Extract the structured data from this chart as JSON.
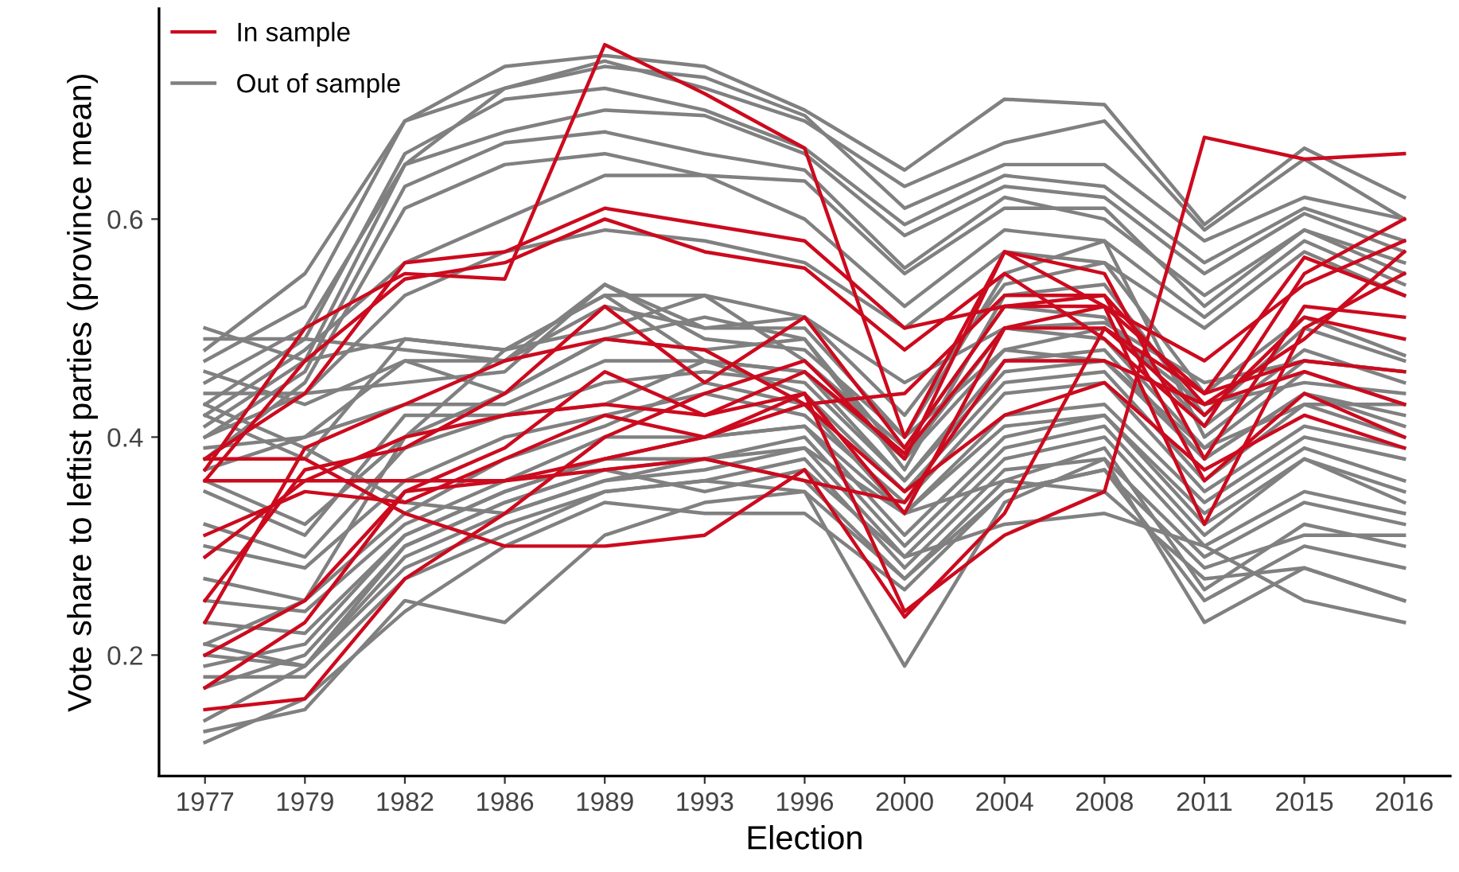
{
  "chart_data": {
    "type": "line",
    "xlabel": "Election",
    "ylabel": "Vote share to leftist parties (province mean)",
    "categories": [
      "1977",
      "1979",
      "1982",
      "1986",
      "1989",
      "1993",
      "1996",
      "2000",
      "2004",
      "2008",
      "2011",
      "2015",
      "2016"
    ],
    "ylim": [
      0.089,
      0.793
    ],
    "yticks": [
      {
        "value": 0.2,
        "label": "0.2"
      },
      {
        "value": 0.4,
        "label": "0.4"
      },
      {
        "value": 0.6,
        "label": "0.6"
      }
    ],
    "grid": false,
    "legend": "top left",
    "marker": "none",
    "line_style": "solid",
    "series": [
      {
        "color": "#808080",
        "values": [
          0.48,
          0.55,
          0.69,
          0.74,
          0.75,
          0.74,
          0.7,
          0.645,
          0.71,
          0.705,
          0.595,
          0.665,
          0.62
        ]
      },
      {
        "color": "#808080",
        "values": [
          0.47,
          0.52,
          0.69,
          0.72,
          0.745,
          0.72,
          0.69,
          0.63,
          0.67,
          0.69,
          0.59,
          0.655,
          0.6
        ]
      },
      {
        "color": "#808080",
        "values": [
          0.45,
          0.5,
          0.65,
          0.72,
          0.74,
          0.73,
          0.695,
          0.61,
          0.65,
          0.65,
          0.58,
          0.62,
          0.6
        ]
      },
      {
        "color": "#808080",
        "values": [
          0.43,
          0.49,
          0.66,
          0.71,
          0.72,
          0.7,
          0.665,
          0.595,
          0.64,
          0.63,
          0.56,
          0.61,
          0.58
        ]
      },
      {
        "color": "#808080",
        "values": [
          0.41,
          0.47,
          0.65,
          0.68,
          0.7,
          0.695,
          0.66,
          0.585,
          0.63,
          0.62,
          0.55,
          0.605,
          0.57
        ]
      },
      {
        "color": "#808080",
        "values": [
          0.4,
          0.46,
          0.63,
          0.67,
          0.68,
          0.66,
          0.645,
          0.555,
          0.62,
          0.6,
          0.53,
          0.59,
          0.56
        ]
      },
      {
        "color": "#808080",
        "values": [
          0.38,
          0.45,
          0.61,
          0.65,
          0.66,
          0.64,
          0.635,
          0.55,
          0.61,
          0.61,
          0.52,
          0.59,
          0.55
        ]
      },
      {
        "color": "#808080",
        "values": [
          0.42,
          0.48,
          0.56,
          0.6,
          0.64,
          0.64,
          0.6,
          0.52,
          0.59,
          0.58,
          0.51,
          0.58,
          0.54
        ]
      },
      {
        "color": "#808080",
        "values": [
          0.4,
          0.44,
          0.53,
          0.57,
          0.59,
          0.58,
          0.56,
          0.5,
          0.57,
          0.56,
          0.5,
          0.57,
          0.53
        ]
      },
      {
        "color": "#808080",
        "values": [
          0.5,
          0.47,
          0.49,
          0.48,
          0.5,
          0.53,
          0.51,
          0.45,
          0.5,
          0.505,
          0.45,
          0.47,
          0.46
        ]
      },
      {
        "color": "#808080",
        "values": [
          0.49,
          0.49,
          0.48,
          0.47,
          0.54,
          0.49,
          0.48,
          0.4,
          0.48,
          0.5,
          0.43,
          0.45,
          0.44
        ]
      },
      {
        "color": "#808080",
        "values": [
          0.46,
          0.43,
          0.47,
          0.47,
          0.52,
          0.5,
          0.51,
          0.42,
          0.54,
          0.56,
          0.44,
          0.51,
          0.475
        ]
      },
      {
        "color": "#808080",
        "values": [
          0.44,
          0.44,
          0.45,
          0.46,
          0.54,
          0.5,
          0.5,
          0.4,
          0.55,
          0.58,
          0.4,
          0.47,
          0.46
        ]
      },
      {
        "color": "#808080",
        "values": [
          0.42,
          0.38,
          0.49,
          0.48,
          0.53,
          0.53,
          0.47,
          0.39,
          0.52,
          0.51,
          0.41,
          0.48,
          0.45
        ]
      },
      {
        "color": "#808080",
        "values": [
          0.39,
          0.4,
          0.47,
          0.44,
          0.49,
          0.48,
          0.49,
          0.38,
          0.5,
          0.49,
          0.39,
          0.46,
          0.43
        ]
      },
      {
        "color": "#808080",
        "values": [
          0.37,
          0.4,
          0.43,
          0.43,
          0.47,
          0.47,
          0.46,
          0.36,
          0.47,
          0.48,
          0.38,
          0.44,
          0.42
        ]
      },
      {
        "color": "#808080",
        "values": [
          0.35,
          0.31,
          0.42,
          0.42,
          0.45,
          0.46,
          0.45,
          0.36,
          0.46,
          0.47,
          0.38,
          0.44,
          0.41
        ]
      },
      {
        "color": "#808080",
        "values": [
          0.32,
          0.29,
          0.39,
          0.42,
          0.43,
          0.47,
          0.44,
          0.35,
          0.45,
          0.46,
          0.36,
          0.43,
          0.4
        ]
      },
      {
        "color": "#808080",
        "values": [
          0.3,
          0.28,
          0.36,
          0.4,
          0.42,
          0.44,
          0.42,
          0.34,
          0.44,
          0.45,
          0.35,
          0.41,
          0.39
        ]
      },
      {
        "color": "#808080",
        "values": [
          0.27,
          0.25,
          0.33,
          0.38,
          0.41,
          0.45,
          0.43,
          0.33,
          0.42,
          0.43,
          0.34,
          0.4,
          0.38
        ]
      },
      {
        "color": "#808080",
        "values": [
          0.25,
          0.24,
          0.32,
          0.36,
          0.4,
          0.4,
          0.41,
          0.33,
          0.41,
          0.42,
          0.33,
          0.39,
          0.36
        ]
      },
      {
        "color": "#808080",
        "values": [
          0.23,
          0.22,
          0.31,
          0.35,
          0.38,
          0.4,
          0.41,
          0.31,
          0.4,
          0.42,
          0.32,
          0.38,
          0.35
        ]
      },
      {
        "color": "#808080",
        "values": [
          0.21,
          0.19,
          0.3,
          0.34,
          0.37,
          0.38,
          0.4,
          0.3,
          0.39,
          0.41,
          0.31,
          0.38,
          0.34
        ]
      },
      {
        "color": "#808080",
        "values": [
          0.2,
          0.19,
          0.29,
          0.33,
          0.36,
          0.37,
          0.39,
          0.29,
          0.38,
          0.4,
          0.3,
          0.35,
          0.33
        ]
      },
      {
        "color": "#808080",
        "values": [
          0.18,
          0.18,
          0.27,
          0.31,
          0.35,
          0.36,
          0.38,
          0.28,
          0.37,
          0.38,
          0.29,
          0.34,
          0.32
        ]
      },
      {
        "color": "#808080",
        "values": [
          0.13,
          0.15,
          0.25,
          0.23,
          0.31,
          0.34,
          0.35,
          0.27,
          0.36,
          0.39,
          0.26,
          0.32,
          0.3
        ]
      },
      {
        "color": "#808080",
        "values": [
          0.12,
          0.16,
          0.24,
          0.3,
          0.34,
          0.33,
          0.33,
          0.26,
          0.35,
          0.37,
          0.25,
          0.3,
          0.28
        ]
      },
      {
        "color": "#808080",
        "values": [
          0.14,
          0.19,
          0.28,
          0.32,
          0.35,
          0.36,
          0.35,
          0.19,
          0.34,
          0.38,
          0.23,
          0.28,
          0.25
        ]
      },
      {
        "color": "#808080",
        "values": [
          0.17,
          0.2,
          0.3,
          0.34,
          0.37,
          0.35,
          0.37,
          0.29,
          0.32,
          0.33,
          0.3,
          0.25,
          0.23
        ]
      },
      {
        "color": "#808080",
        "values": [
          0.19,
          0.21,
          0.31,
          0.35,
          0.38,
          0.38,
          0.39,
          0.33,
          0.36,
          0.35,
          0.27,
          0.28,
          0.25
        ]
      },
      {
        "color": "#808080",
        "values": [
          0.43,
          0.39,
          0.34,
          0.33,
          0.36,
          0.38,
          0.36,
          0.27,
          0.35,
          0.37,
          0.28,
          0.31,
          0.31
        ]
      },
      {
        "color": "#808080",
        "values": [
          0.21,
          0.25,
          0.4,
          0.48,
          0.53,
          0.47,
          0.46,
          0.38,
          0.48,
          0.47,
          0.39,
          0.43,
          0.43
        ]
      },
      {
        "name": "Out of sample",
        "color": "#808080",
        "values": [
          0.36,
          0.32,
          0.4,
          0.44,
          0.49,
          0.51,
          0.49,
          0.37,
          0.53,
          0.54,
          0.42,
          0.5,
          0.47
        ]
      },
      {
        "name": "In sample",
        "color": "#cc0a1e",
        "values": [
          0.37,
          0.5,
          0.55,
          0.545,
          0.76,
          0.715,
          0.665,
          0.4,
          0.57,
          0.52,
          0.32,
          0.5,
          0.55
        ]
      },
      {
        "color": "#cc0a1e",
        "values": [
          0.29,
          0.36,
          0.4,
          0.42,
          0.43,
          0.42,
          0.44,
          0.24,
          0.31,
          0.35,
          0.675,
          0.655,
          0.66
        ]
      },
      {
        "color": "#cc0a1e",
        "values": [
          0.38,
          0.44,
          0.56,
          0.57,
          0.61,
          0.595,
          0.58,
          0.5,
          0.52,
          0.52,
          0.44,
          0.565,
          0.53
        ]
      },
      {
        "color": "#cc0a1e",
        "values": [
          0.36,
          0.47,
          0.545,
          0.56,
          0.6,
          0.57,
          0.555,
          0.48,
          0.55,
          0.49,
          0.41,
          0.55,
          0.6
        ]
      },
      {
        "color": "#cc0a1e",
        "values": [
          0.17,
          0.23,
          0.35,
          0.36,
          0.38,
          0.4,
          0.44,
          0.33,
          0.5,
          0.5,
          0.44,
          0.47,
          0.46
        ]
      },
      {
        "color": "#cc0a1e",
        "values": [
          0.15,
          0.16,
          0.27,
          0.33,
          0.4,
          0.44,
          0.47,
          0.38,
          0.57,
          0.55,
          0.38,
          0.52,
          0.51
        ]
      },
      {
        "color": "#cc0a1e",
        "values": [
          0.25,
          0.37,
          0.39,
          0.44,
          0.52,
          0.45,
          0.51,
          0.39,
          0.52,
          0.53,
          0.36,
          0.44,
          0.4
        ]
      },
      {
        "color": "#cc0a1e",
        "values": [
          0.38,
          0.38,
          0.33,
          0.3,
          0.3,
          0.31,
          0.37,
          0.235,
          0.33,
          0.5,
          0.42,
          0.51,
          0.49
        ]
      },
      {
        "color": "#cc0a1e",
        "values": [
          0.36,
          0.36,
          0.36,
          0.36,
          0.37,
          0.38,
          0.36,
          0.34,
          0.47,
          0.47,
          0.43,
          0.49,
          0.57
        ]
      },
      {
        "color": "#cc0a1e",
        "values": [
          0.2,
          0.25,
          0.35,
          0.39,
          0.46,
          0.42,
          0.46,
          0.385,
          0.5,
          0.52,
          0.47,
          0.54,
          0.58
        ]
      },
      {
        "color": "#cc0a1e",
        "values": [
          0.31,
          0.35,
          0.34,
          0.38,
          0.42,
          0.4,
          0.43,
          0.35,
          0.42,
          0.45,
          0.37,
          0.42,
          0.39
        ]
      },
      {
        "color": "#cc0a1e",
        "values": [
          0.23,
          0.39,
          0.43,
          0.47,
          0.49,
          0.48,
          0.43,
          0.44,
          0.53,
          0.53,
          0.43,
          0.46,
          0.43
        ]
      }
    ]
  }
}
